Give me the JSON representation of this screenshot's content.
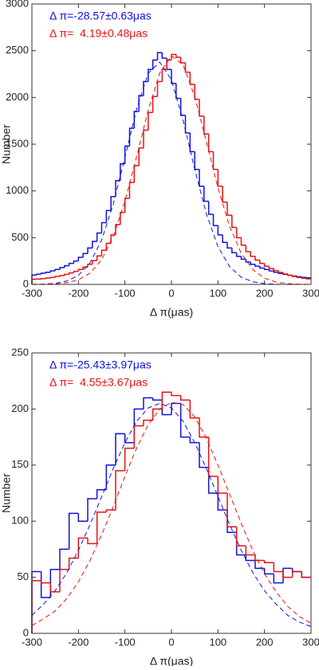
{
  "chart_data": [
    {
      "type": "histogram",
      "xlabel": "Δ π(μas)",
      "ylabel": "Number",
      "xlim": [
        -300,
        300
      ],
      "ylim": [
        0,
        3000
      ],
      "xticks": [
        -300,
        -200,
        -100,
        0,
        100,
        200,
        300
      ],
      "yticks": [
        0,
        500,
        1000,
        1500,
        2000,
        2500,
        3000
      ],
      "annotations": [
        {
          "text": "Δ π=-28.57±0.63μas",
          "color": "#1010e0"
        },
        {
          "text": "Δ π=  4.19±0.48μas",
          "color": "#e81010"
        }
      ],
      "bins": [
        -300,
        -290,
        -280,
        -270,
        -260,
        -250,
        -240,
        -230,
        -220,
        -210,
        -200,
        -190,
        -180,
        -170,
        -160,
        -150,
        -140,
        -130,
        -120,
        -110,
        -100,
        -90,
        -80,
        -70,
        -60,
        -50,
        -40,
        -30,
        -20,
        -10,
        0,
        10,
        20,
        30,
        40,
        50,
        60,
        70,
        80,
        90,
        100,
        110,
        120,
        130,
        140,
        150,
        160,
        170,
        180,
        190,
        200,
        210,
        220,
        230,
        240,
        250,
        260,
        270,
        280,
        290,
        300
      ],
      "series": [
        {
          "color": "#1010e0",
          "values": [
            100,
            110,
            120,
            130,
            145,
            160,
            180,
            200,
            225,
            250,
            290,
            330,
            390,
            460,
            550,
            660,
            790,
            940,
            1110,
            1290,
            1480,
            1670,
            1850,
            2020,
            2170,
            2300,
            2400,
            2480,
            2420,
            2300,
            2150,
            1990,
            1810,
            1620,
            1420,
            1230,
            1050,
            890,
            750,
            630,
            530,
            450,
            390,
            340,
            300,
            270,
            240,
            215,
            195,
            175,
            160,
            145,
            130,
            118,
            108,
            98,
            90,
            82,
            75,
            70
          ]
        },
        {
          "color": "#e81010",
          "values": [
            55,
            58,
            62,
            68,
            75,
            85,
            95,
            108,
            122,
            140,
            160,
            185,
            215,
            255,
            305,
            365,
            440,
            530,
            640,
            770,
            920,
            1090,
            1270,
            1460,
            1650,
            1840,
            2010,
            2170,
            2300,
            2400,
            2460,
            2430,
            2370,
            2270,
            2140,
            1980,
            1800,
            1610,
            1420,
            1230,
            1050,
            880,
            740,
            610,
            500,
            420,
            350,
            300,
            260,
            225,
            195,
            170,
            148,
            128,
            112,
            98,
            85,
            75,
            66,
            60
          ]
        }
      ],
      "fits": [
        {
          "color": "#1010e0",
          "x": [
            -300,
            -275,
            -250,
            -225,
            -200,
            -175,
            -150,
            -125,
            -100,
            -75,
            -50,
            -25,
            0,
            25,
            50,
            75,
            100,
            125,
            150,
            175,
            200,
            225,
            250,
            275,
            300
          ],
          "values": [
            1,
            3,
            12,
            36,
            97,
            230,
            476,
            861,
            1359,
            1874,
            2259,
            2378,
            2187,
            1757,
            1233,
            756,
            405,
            190,
            77,
            28,
            9,
            2,
            1,
            0,
            0
          ]
        },
        {
          "color": "#e81010",
          "x": [
            -300,
            -275,
            -250,
            -225,
            -200,
            -175,
            -150,
            -125,
            -100,
            -75,
            -50,
            -25,
            0,
            25,
            50,
            75,
            100,
            125,
            150,
            175,
            200,
            225,
            250,
            275,
            300
          ],
          "values": [
            0,
            2,
            6,
            18,
            49,
            121,
            264,
            515,
            888,
            1364,
            1864,
            2264,
            2446,
            2350,
            2009,
            1527,
            1032,
            620,
            332,
            158,
            67,
            25,
            8,
            2,
            1
          ]
        }
      ]
    },
    {
      "type": "histogram",
      "xlabel": "Δ π(μas)",
      "ylabel": "Number",
      "xlim": [
        -300,
        300
      ],
      "ylim": [
        0,
        250
      ],
      "xticks": [
        -300,
        -200,
        -100,
        0,
        100,
        200,
        300
      ],
      "yticks": [
        0,
        50,
        100,
        150,
        200,
        250
      ],
      "annotations": [
        {
          "text": "Δ π=-25.43±3.97μas",
          "color": "#1010e0"
        },
        {
          "text": "Δ π=  4.55±3.67μas",
          "color": "#e81010"
        }
      ],
      "bins": [
        -300,
        -280,
        -260,
        -240,
        -220,
        -200,
        -180,
        -160,
        -140,
        -120,
        -100,
        -80,
        -60,
        -40,
        -20,
        0,
        20,
        40,
        60,
        80,
        100,
        120,
        140,
        160,
        180,
        200,
        220,
        240,
        260,
        280,
        300
      ],
      "series": [
        {
          "color": "#1010e0",
          "values": [
            55,
            32,
            57,
            75,
            107,
            100,
            120,
            128,
            150,
            178,
            170,
            200,
            210,
            208,
            195,
            205,
            175,
            170,
            148,
            125,
            110,
            90,
            70,
            65,
            58,
            53,
            45,
            58,
            55,
            50
          ]
        },
        {
          "color": "#e81010",
          "values": [
            47,
            45,
            37,
            57,
            67,
            85,
            80,
            108,
            110,
            145,
            165,
            185,
            190,
            200,
            215,
            212,
            208,
            192,
            175,
            140,
            125,
            95,
            78,
            70,
            65,
            63,
            55,
            50,
            55,
            50
          ]
        }
      ],
      "fits": [
        {
          "color": "#1010e0",
          "x": [
            -300,
            -275,
            -250,
            -225,
            -200,
            -175,
            -150,
            -125,
            -100,
            -75,
            -50,
            -25,
            0,
            25,
            50,
            75,
            100,
            125,
            150,
            175,
            200,
            225,
            250,
            275,
            300
          ],
          "values": [
            16,
            26,
            38,
            54,
            74,
            97,
            122,
            147,
            170,
            189,
            201,
            205,
            201,
            189,
            170,
            147,
            122,
            97,
            74,
            54,
            38,
            26,
            16,
            10,
            6
          ]
        },
        {
          "color": "#e81010",
          "x": [
            -300,
            -275,
            -250,
            -225,
            -200,
            -175,
            -150,
            -125,
            -100,
            -75,
            -50,
            -25,
            0,
            25,
            50,
            75,
            100,
            125,
            150,
            175,
            200,
            225,
            250,
            275,
            300
          ],
          "values": [
            7,
            13,
            20,
            31,
            46,
            65,
            88,
            113,
            140,
            165,
            186,
            200,
            206,
            204,
            193,
            174,
            150,
            124,
            98,
            74,
            53,
            37,
            24,
            15,
            9
          ]
        }
      ]
    }
  ]
}
